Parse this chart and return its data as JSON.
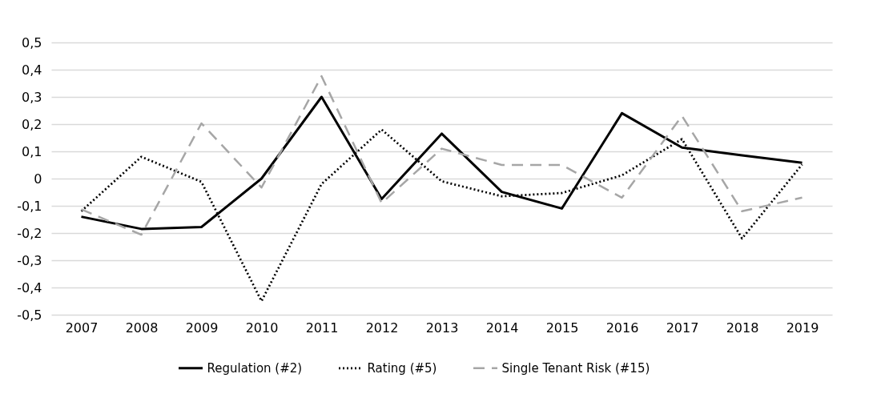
{
  "chart_data": {
    "type": "line",
    "categories": [
      "2007",
      "2008",
      "2009",
      "2010",
      "2011",
      "2012",
      "2013",
      "2014",
      "2015",
      "2016",
      "2017",
      "2018",
      "2019"
    ],
    "series": [
      {
        "name": "Regulation (#2)",
        "color": "#000000",
        "line_style": "solid",
        "values": [
          -0.14,
          -0.185,
          -0.178,
          0.0,
          0.3,
          -0.075,
          0.165,
          -0.049,
          -0.11,
          0.24,
          0.114,
          0.085,
          0.058
        ]
      },
      {
        "name": "Rating (#5)",
        "color": "#000000",
        "line_style": "dotted",
        "values": [
          -0.12,
          0.08,
          -0.012,
          -0.45,
          -0.02,
          0.18,
          -0.01,
          -0.065,
          -0.053,
          0.012,
          0.145,
          -0.22,
          0.052
        ]
      },
      {
        "name": "Single Tenant Risk (#15)",
        "color": "#a6a6a6",
        "line_style": "dashed",
        "values": [
          -0.113,
          -0.206,
          0.203,
          -0.033,
          0.376,
          -0.09,
          0.11,
          0.05,
          0.05,
          -0.07,
          0.23,
          -0.12,
          -0.07
        ]
      }
    ],
    "ylim": [
      -0.5,
      0.5
    ],
    "yticks": [
      {
        "value": -0.5,
        "label": "-0,5"
      },
      {
        "value": -0.4,
        "label": "-0,4"
      },
      {
        "value": -0.3,
        "label": "-0,3"
      },
      {
        "value": -0.2,
        "label": "-0,2"
      },
      {
        "value": -0.1,
        "label": "-0,1"
      },
      0,
      {
        "value": 0.1,
        "label": "0,1"
      },
      {
        "value": 0.2,
        "label": "0,2"
      },
      {
        "value": 0.3,
        "label": "0,3"
      },
      {
        "value": 0.4,
        "label": "0,4"
      },
      {
        "value": 0.5,
        "label": "0,5"
      }
    ],
    "grid": "y",
    "legend": "bottom"
  }
}
